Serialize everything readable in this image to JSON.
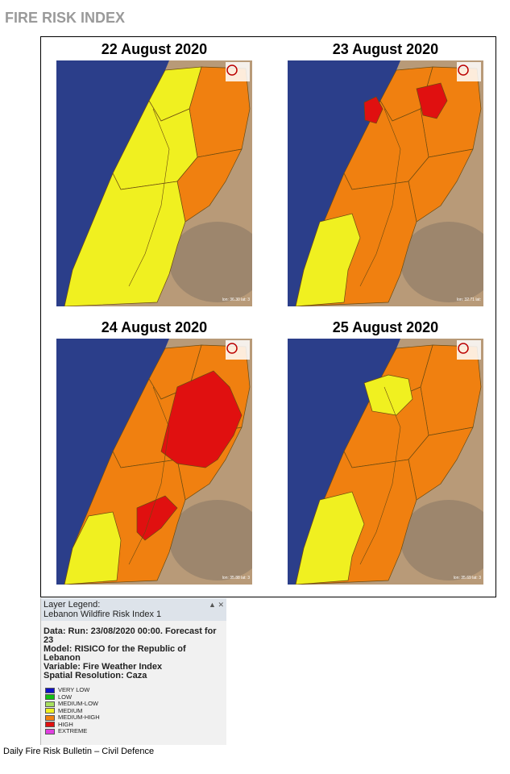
{
  "header": {
    "title": "FIRE RISK INDEX"
  },
  "maps": [
    {
      "date": "22 August 2020",
      "coords": "lon: 36.30 lat: 3"
    },
    {
      "date": "23 August 2020",
      "coords": "lon: 32.71 lat:"
    },
    {
      "date": "24 August 2020",
      "coords": "lon: 35.88 lat: 3"
    },
    {
      "date": "25 August 2020",
      "coords": "lon: 35.69 lat: 3"
    }
  ],
  "legend": {
    "title": "Layer Legend:",
    "layer": "Lebanon Wildfire Risk Index 1",
    "details": [
      "Data: Run: 23/08/2020 00:00. Forecast for 23",
      "Model: RISICO for the Republic of Lebanon",
      "Variable: Fire Weather Index",
      "Spatial Resolution: Caza"
    ],
    "items": [
      {
        "label": "VERY LOW",
        "color": "#1010c8"
      },
      {
        "label": "LOW",
        "color": "#10c010"
      },
      {
        "label": "MEDIUM-LOW",
        "color": "#a8e060"
      },
      {
        "label": "MEDIUM",
        "color": "#f0f020"
      },
      {
        "label": "MEDIUM-HIGH",
        "color": "#f08010"
      },
      {
        "label": "HIGH",
        "color": "#e01010"
      },
      {
        "label": "EXTREME",
        "color": "#e040e0"
      }
    ]
  },
  "footer": {
    "text": "Daily Fire Risk Bulletin – Civil Defence"
  }
}
